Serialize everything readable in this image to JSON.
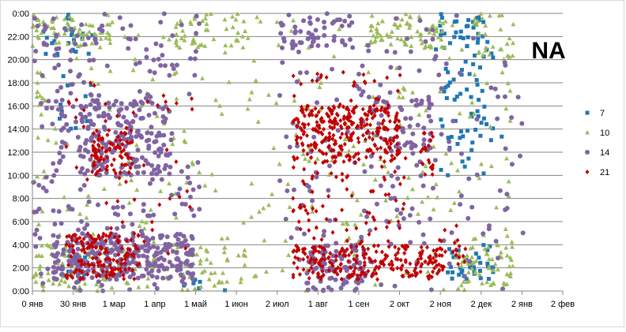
{
  "chart_data": {
    "type": "scatter",
    "annotation": "NA",
    "x_ticks": [
      "0 янв",
      "30 янв",
      "1 мар",
      "1 апр",
      "1 май",
      "1 июн",
      "2 июл",
      "1 авг",
      "1 сен",
      "2 окт",
      "2 ноя",
      "2 дек",
      "2 янв",
      "2 фев"
    ],
    "y_ticks": [
      "0:00",
      "2:00",
      "4:00",
      "6:00",
      "8:00",
      "10:00",
      "12:00",
      "14:00",
      "16:00",
      "18:00",
      "20:00",
      "22:00",
      "0:00"
    ],
    "x_unit": "days from 0 янв",
    "xlim": [
      0,
      397
    ],
    "ylim": [
      0,
      24
    ],
    "grid": "horizontal",
    "legend_position": "right",
    "series": [
      {
        "name": "7",
        "marker": "square",
        "color": "#1f77b4",
        "clusters": [
          {
            "x": [
              5,
              45
            ],
            "y": [
              20,
              24
            ],
            "n": 25
          },
          {
            "x": [
              5,
              45
            ],
            "y": [
              14,
              19
            ],
            "n": 10
          },
          {
            "x": [
              20,
              40
            ],
            "y": [
              1,
              4
            ],
            "n": 10
          },
          {
            "x": [
              110,
              145
            ],
            "y": [
              0,
              1
            ],
            "n": 6
          },
          {
            "x": [
              300,
              340
            ],
            "y": [
              18,
              24
            ],
            "n": 35
          },
          {
            "x": [
              305,
              340
            ],
            "y": [
              10,
              18
            ],
            "n": 40
          },
          {
            "x": [
              310,
              345
            ],
            "y": [
              1,
              4
            ],
            "n": 35
          },
          {
            "x": [
              325,
              345
            ],
            "y": [
              20,
              24
            ],
            "n": 15
          },
          {
            "x": [
              335,
              355
            ],
            "y": [
              13,
              15
            ],
            "n": 5
          }
        ]
      },
      {
        "name": "10",
        "marker": "triangle",
        "color": "#9bbb59",
        "clusters": [
          {
            "x": [
              0,
              60
            ],
            "y": [
              0,
              4
            ],
            "n": 70
          },
          {
            "x": [
              0,
              60
            ],
            "y": [
              21,
              24
            ],
            "n": 60
          },
          {
            "x": [
              0,
              10
            ],
            "y": [
              16,
              19
            ],
            "n": 10
          },
          {
            "x": [
              0,
              360
            ],
            "y": [
              0,
              24
            ],
            "n": 300
          },
          {
            "x": [
              60,
              160
            ],
            "y": [
              0,
              4
            ],
            "n": 60
          },
          {
            "x": [
              100,
              160
            ],
            "y": [
              21,
              24
            ],
            "n": 40
          },
          {
            "x": [
              250,
              285
            ],
            "y": [
              21,
              24
            ],
            "n": 40
          },
          {
            "x": [
              280,
              310
            ],
            "y": [
              21,
              24
            ],
            "n": 30
          },
          {
            "x": [
              320,
              360
            ],
            "y": [
              0,
              4
            ],
            "n": 60
          },
          {
            "x": [
              330,
              360
            ],
            "y": [
              20,
              24
            ],
            "n": 25
          }
        ]
      },
      {
        "name": "14",
        "marker": "circle",
        "color": "#8064a2",
        "clusters": [
          {
            "x": [
              15,
              120
            ],
            "y": [
              1,
              5
            ],
            "n": 260
          },
          {
            "x": [
              0,
              125
            ],
            "y": [
              0,
              24
            ],
            "n": 300
          },
          {
            "x": [
              35,
              105
            ],
            "y": [
              10,
              17
            ],
            "n": 140
          },
          {
            "x": [
              185,
              240
            ],
            "y": [
              21,
              24
            ],
            "n": 50
          },
          {
            "x": [
              185,
              300
            ],
            "y": [
              0,
              24
            ],
            "n": 150
          },
          {
            "x": [
              205,
              250
            ],
            "y": [
              0,
              4
            ],
            "n": 80
          },
          {
            "x": [
              250,
              300
            ],
            "y": [
              12,
              17
            ],
            "n": 50
          },
          {
            "x": [
              300,
              370
            ],
            "y": [
              0,
              24
            ],
            "n": 50
          }
        ]
      },
      {
        "name": "21",
        "marker": "diamond",
        "color": "#c00000",
        "clusters": [
          {
            "x": [
              25,
              80
            ],
            "y": [
              1,
              5
            ],
            "n": 150
          },
          {
            "x": [
              45,
              75
            ],
            "y": [
              10,
              14
            ],
            "n": 80
          },
          {
            "x": [
              25,
              120
            ],
            "y": [
              3,
              18
            ],
            "n": 50
          },
          {
            "x": [
              195,
              275
            ],
            "y": [
              11,
              16
            ],
            "n": 260
          },
          {
            "x": [
              195,
              280
            ],
            "y": [
              1,
              4
            ],
            "n": 180
          },
          {
            "x": [
              195,
              280
            ],
            "y": [
              4,
              19
            ],
            "n": 140
          },
          {
            "x": [
              280,
              310
            ],
            "y": [
              1,
              4
            ],
            "n": 60
          },
          {
            "x": [
              290,
              300
            ],
            "y": [
              10,
              14
            ],
            "n": 20
          },
          {
            "x": [
              300,
              325
            ],
            "y": [
              2,
              6
            ],
            "n": 20
          }
        ]
      }
    ]
  }
}
